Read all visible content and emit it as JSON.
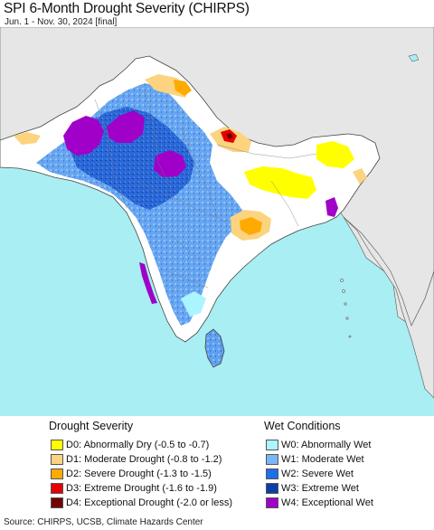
{
  "header": {
    "title": "SPI 6-Month Drought Severity (CHIRPS)",
    "subtitle": "Jun. 1 - Nov. 30, 2024 [final]"
  },
  "colors": {
    "ocean": "#a9eef2",
    "land_outside": "#e6e6e6",
    "normal_land": "#ffffff"
  },
  "legend": {
    "drought_title": "Drought Severity",
    "wet_title": "Wet Conditions",
    "drought_items": [
      {
        "label": "D0: Abnormally Dry (-0.5 to -0.7)",
        "color": "#ffff00"
      },
      {
        "label": "D1: Moderate Drought (-0.8 to -1.2)",
        "color": "#fcd37f"
      },
      {
        "label": "D2: Severe Drought (-1.3 to -1.5)",
        "color": "#ffaa00"
      },
      {
        "label": "D3: Extreme Drought (-1.6 to -1.9)",
        "color": "#e60000"
      },
      {
        "label": "D4: Exceptional Drought (-2.0 or less)",
        "color": "#730000"
      }
    ],
    "wet_items": [
      {
        "label": "W0: Abnormally Wet",
        "color": "#aaf5ff"
      },
      {
        "label": "W1: Moderate Wet",
        "color": "#7ab6f5"
      },
      {
        "label": "W2: Severe Wet",
        "color": "#1e6eeb"
      },
      {
        "label": "W3: Extreme Wet",
        "color": "#0a3fa8"
      },
      {
        "label": "W4: Exceptional Wet",
        "color": "#a000c8"
      }
    ]
  },
  "footer": {
    "source": "Source: CHIRPS, UCSB, Climate Hazards Center"
  }
}
